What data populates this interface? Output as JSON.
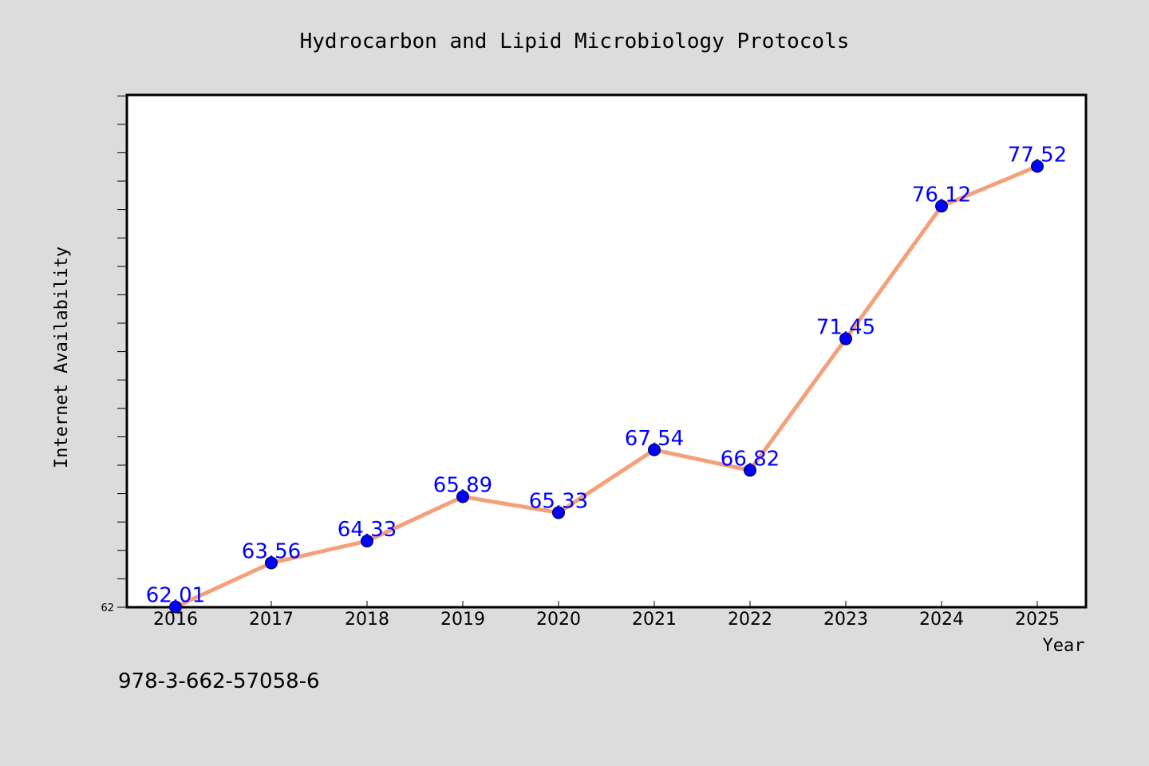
{
  "chart_data": {
    "type": "line",
    "title": "Hydrocarbon and Lipid Microbiology Protocols",
    "xlabel": "Year",
    "ylabel": "Internet Availability",
    "categories": [
      "2016",
      "2017",
      "2018",
      "2019",
      "2020",
      "2021",
      "2022",
      "2023",
      "2024",
      "2025"
    ],
    "series": [
      {
        "values": [
          62.01,
          63.56,
          64.33,
          65.89,
          65.33,
          67.54,
          66.82,
          71.45,
          76.12,
          77.52
        ],
        "data_labels": [
          "62.01",
          "63.56",
          "64.33",
          "65.89",
          "65.33",
          "67.54",
          "66.82",
          "71.45",
          "76.12",
          "77.52"
        ]
      }
    ],
    "ylim": [
      62,
      80
    ],
    "y_tick_labels": [
      "62"
    ],
    "grid": false,
    "legend": "none",
    "colors": {
      "line": "#f4a07a",
      "marker": "#0000ff",
      "data_label": "#0000ff",
      "plot_background": "#ffffff",
      "figure_background": "#dcdcdc"
    }
  },
  "footnote": "978-3-662-57058-6"
}
